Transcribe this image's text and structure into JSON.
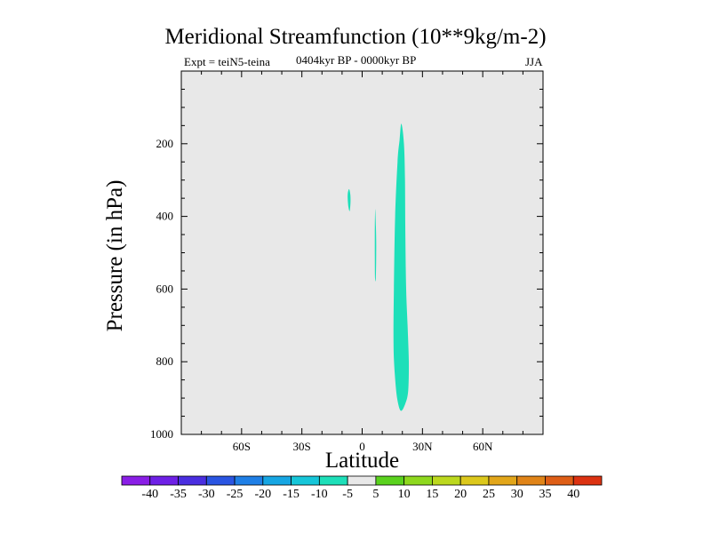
{
  "chart_data": {
    "type": "contour",
    "title": "Meridional Streamfunction (10**9kg/m-2)",
    "subtitle_left": "Expt = teiN5-teina",
    "subtitle_center": "0404kyr BP - 0000kyr BP",
    "subtitle_right": "JJA",
    "xlabel": "Latitude",
    "ylabel": "Pressure (in hPa)",
    "xlim": [
      -90,
      90
    ],
    "ylim": [
      1000,
      0
    ],
    "x_ticks": [
      {
        "value": -60,
        "label": "60S"
      },
      {
        "value": -30,
        "label": "30S"
      },
      {
        "value": 0,
        "label": "0"
      },
      {
        "value": 30,
        "label": "30N"
      },
      {
        "value": 60,
        "label": "60N"
      }
    ],
    "y_ticks": [
      {
        "value": 200,
        "label": "200"
      },
      {
        "value": 400,
        "label": "400"
      },
      {
        "value": 600,
        "label": "600"
      },
      {
        "value": 800,
        "label": "800"
      },
      {
        "value": 1000,
        "label": "1000"
      }
    ],
    "background_color": "#e8e8e8",
    "regions": [
      {
        "name": "main-negative-cell",
        "level": "-10 to -5",
        "color": "#1ddfb9",
        "lat_range": [
          15.5,
          23.5
        ],
        "pressure_range": [
          145,
          935
        ],
        "outline": [
          [
            19.5,
            145
          ],
          [
            20.8,
            200
          ],
          [
            21.3,
            300
          ],
          [
            21.5,
            450
          ],
          [
            21.9,
            600
          ],
          [
            22.6,
            700
          ],
          [
            23.2,
            800
          ],
          [
            22.9,
            880
          ],
          [
            21.5,
            915
          ],
          [
            19.2,
            935
          ],
          [
            17.4,
            900
          ],
          [
            16.2,
            830
          ],
          [
            15.6,
            750
          ],
          [
            15.8,
            600
          ],
          [
            16.4,
            400
          ],
          [
            17.6,
            250
          ],
          [
            18.6,
            190
          ]
        ]
      },
      {
        "name": "thin-negative-strip",
        "level": "-10 to -5",
        "color": "#1ddfb9",
        "lat_range": [
          6.3,
          7.0
        ],
        "pressure_range": [
          380,
          570
        ],
        "outline": [
          [
            6.5,
            380
          ],
          [
            6.9,
            440
          ],
          [
            7.0,
            500
          ],
          [
            6.8,
            570
          ],
          [
            6.4,
            570
          ],
          [
            6.3,
            500
          ],
          [
            6.3,
            440
          ]
        ]
      },
      {
        "name": "small-negative-patch",
        "level": "-10 to -5",
        "color": "#1ddfb9",
        "lat_range": [
          -7.2,
          -5.8
        ],
        "pressure_range": [
          325,
          385
        ],
        "outline": [
          [
            -6.5,
            325
          ],
          [
            -5.9,
            340
          ],
          [
            -5.8,
            360
          ],
          [
            -6.2,
            385
          ],
          [
            -6.8,
            375
          ],
          [
            -7.2,
            350
          ],
          [
            -7.1,
            335
          ]
        ]
      }
    ],
    "colorbar": {
      "labels": [
        "-40",
        "-35",
        "-30",
        "-25",
        "-20",
        "-15",
        "-10",
        "-5",
        "5",
        "10",
        "15",
        "20",
        "25",
        "30",
        "35",
        "40"
      ],
      "colors": [
        "#8a1ee6",
        "#6e20e6",
        "#4a2ee0",
        "#2a55e2",
        "#1f7fe6",
        "#16a6e3",
        "#16c6d9",
        "#1ddfb9",
        "#e8e8e8",
        "#5ad21e",
        "#8ed81e",
        "#bcd81e",
        "#dcc81c",
        "#e2a61a",
        "#e08418",
        "#de5e16",
        "#dc3212"
      ]
    }
  }
}
